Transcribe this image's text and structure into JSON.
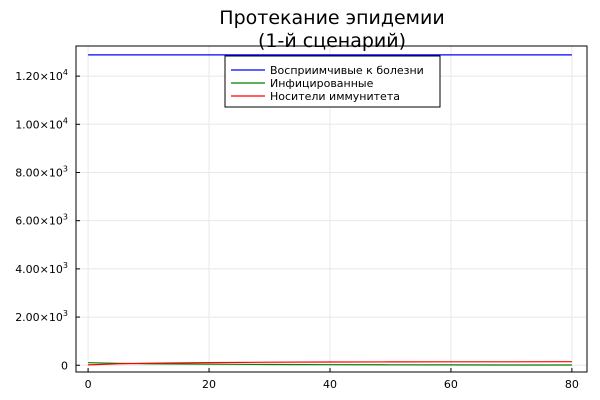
{
  "chart_data": {
    "type": "line",
    "title_lines": [
      "Протекание эпидемии",
      "(1-й сценарий)"
    ],
    "xlabel": "",
    "ylabel": "",
    "xlim": [
      -2,
      82.5
    ],
    "ylim": [
      -280,
      13250
    ],
    "x_ticks": [
      0,
      20,
      40,
      60,
      80
    ],
    "x_tick_labels": [
      "0",
      "20",
      "40",
      "60",
      "80"
    ],
    "y_ticks": [
      0,
      2000,
      4000,
      6000,
      8000,
      10000,
      12000
    ],
    "y_tick_mantissas": [
      "0",
      "2.00×10",
      "4.00×10",
      "6.00×10",
      "8.00×10",
      "1.00×10",
      "1.20×10"
    ],
    "y_tick_exponents": [
      "",
      "3",
      "3",
      "3",
      "3",
      "4",
      "4"
    ],
    "grid": true,
    "legend_position": "top-center",
    "series": [
      {
        "name": "Восприимчивые к болезни",
        "color": "#0000ff",
        "x": [
          0,
          5,
          10,
          20,
          30,
          40,
          50,
          60,
          70,
          80
        ],
        "y": [
          12880,
          12880,
          12880,
          12880,
          12880,
          12880,
          12880,
          12880,
          12880,
          12880
        ]
      },
      {
        "name": "Инфицированные",
        "color": "#008000",
        "x": [
          0,
          5,
          10,
          20,
          30,
          40,
          50,
          60,
          70,
          80
        ],
        "y": [
          105,
          80,
          62,
          42,
          30,
          22,
          17,
          13,
          11,
          10
        ]
      },
      {
        "name": "Носители иммунитета",
        "color": "#ff0000",
        "x": [
          0,
          5,
          10,
          20,
          30,
          40,
          50,
          60,
          70,
          80
        ],
        "y": [
          15,
          60,
          85,
          110,
          125,
          135,
          140,
          143,
          145,
          146
        ]
      }
    ]
  }
}
